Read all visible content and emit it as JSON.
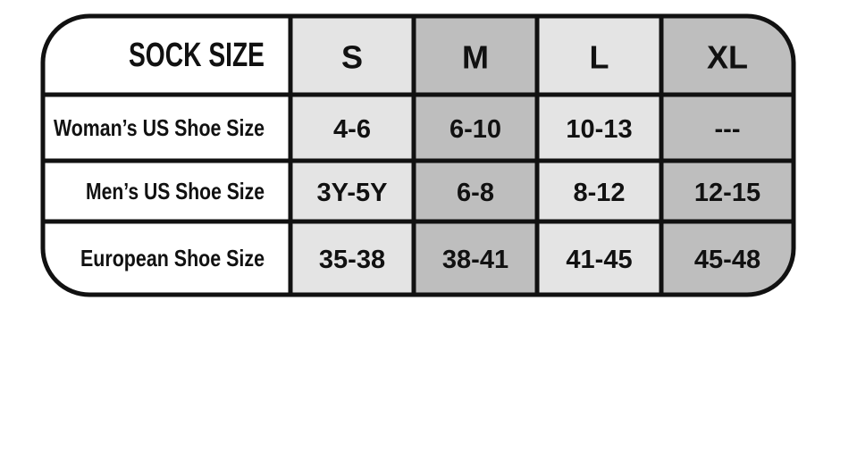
{
  "table": {
    "header": [
      "SOCK SIZE",
      "S",
      "M",
      "L",
      "XL"
    ],
    "rows": [
      [
        "Woman’s US Shoe Size",
        "4-6",
        "6-10",
        "10-13",
        "---"
      ],
      [
        "Men’s US Shoe Size",
        "3Y-5Y",
        "6-8",
        "8-12",
        "12-15"
      ],
      [
        "European Shoe Size",
        "35-38",
        "38-41",
        "41-45",
        "45-48"
      ]
    ]
  }
}
